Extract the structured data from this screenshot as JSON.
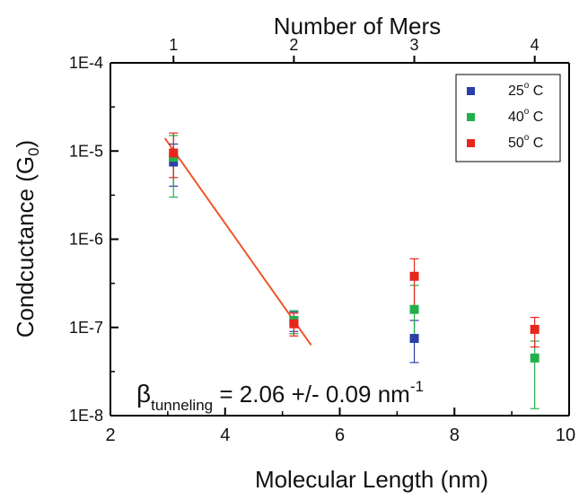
{
  "chart_data": {
    "type": "scatter",
    "title": "",
    "xlabel": "Molecular Length (nm)",
    "ylabel_main": "Condcuctance (G",
    "ylabel_sub": "0",
    "ylabel_close": ")",
    "top_axis_label": "Number of Mers",
    "xlim": [
      2,
      10
    ],
    "ylim": [
      1e-08,
      0.0001
    ],
    "y_scale": "log",
    "x_ticks": [
      2,
      4,
      6,
      8,
      10
    ],
    "x_tick_labels": [
      "2",
      "4",
      "6",
      "8",
      "10"
    ],
    "y_ticks": [
      0.0001,
      1e-05,
      1e-06,
      1e-07,
      1e-08
    ],
    "y_tick_labels": [
      "1E-4",
      "1E-5",
      "1E-6",
      "1E-7",
      "1E-8"
    ],
    "top_ticks": [
      3.1,
      5.2,
      7.3,
      9.4
    ],
    "top_tick_labels": [
      "1",
      "2",
      "3",
      "4"
    ],
    "grid": false,
    "legend_position": "top-right",
    "series": [
      {
        "name": "25° C",
        "legend_base": "25",
        "legend_sup": "o",
        "legend_unit": " C",
        "color": "#2b3fa8",
        "points": [
          {
            "x": 3.1,
            "y": 7.5e-06,
            "err_low": 4e-06,
            "err_high": 1.2e-05
          },
          {
            "x": 5.2,
            "y": 1.2e-07,
            "err_low": 9e-08,
            "err_high": 1.5e-07
          },
          {
            "x": 7.3,
            "y": 7.5e-08,
            "err_low": 4e-08,
            "err_high": 1.2e-07
          }
        ]
      },
      {
        "name": "40° C",
        "legend_base": "40",
        "legend_sup": "o",
        "legend_unit": " C",
        "color": "#22b04b",
        "points": [
          {
            "x": 3.1,
            "y": 8.5e-06,
            "err_low": 3e-06,
            "err_high": 1.5e-05
          },
          {
            "x": 5.2,
            "y": 1.2e-07,
            "err_low": 8.5e-08,
            "err_high": 1.55e-07
          },
          {
            "x": 7.3,
            "y": 1.6e-07,
            "err_low": 7e-08,
            "err_high": 3e-07
          },
          {
            "x": 9.4,
            "y": 4.5e-08,
            "err_low": 1.2e-08,
            "err_high": 7e-08
          }
        ]
      },
      {
        "name": "50° C",
        "legend_base": "50",
        "legend_sup": "o",
        "legend_unit": " C",
        "color": "#e8261c",
        "points": [
          {
            "x": 3.1,
            "y": 9.5e-06,
            "err_low": 5e-06,
            "err_high": 1.6e-05
          },
          {
            "x": 5.2,
            "y": 1.1e-07,
            "err_low": 8e-08,
            "err_high": 1.45e-07
          },
          {
            "x": 7.3,
            "y": 3.8e-07,
            "err_low": 1.7e-07,
            "err_high": 6e-07
          },
          {
            "x": 9.4,
            "y": 9.5e-08,
            "err_low": 6e-08,
            "err_high": 1.3e-07
          }
        ]
      }
    ],
    "fit_line": {
      "color": "#f0552a",
      "x": [
        2.95,
        5.5
      ],
      "y": [
        1.4e-05,
        6.3e-08
      ]
    },
    "annotation": {
      "beta": "β",
      "subscript": "tunneling",
      "text": " = 2.06 +/- 0.09 nm",
      "superscript": "-1"
    }
  }
}
